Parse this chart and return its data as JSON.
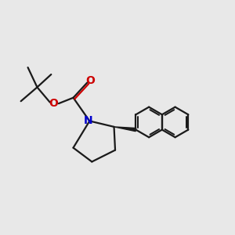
{
  "bg_color": "#e8e8e8",
  "bond_color": "#1a1a1a",
  "N_color": "#0000cc",
  "O_color": "#cc0000",
  "line_width": 1.6,
  "fig_size": [
    3.0,
    3.0
  ],
  "dpi": 100,
  "xlim": [
    0,
    10
  ],
  "ylim": [
    1,
    9.5
  ]
}
